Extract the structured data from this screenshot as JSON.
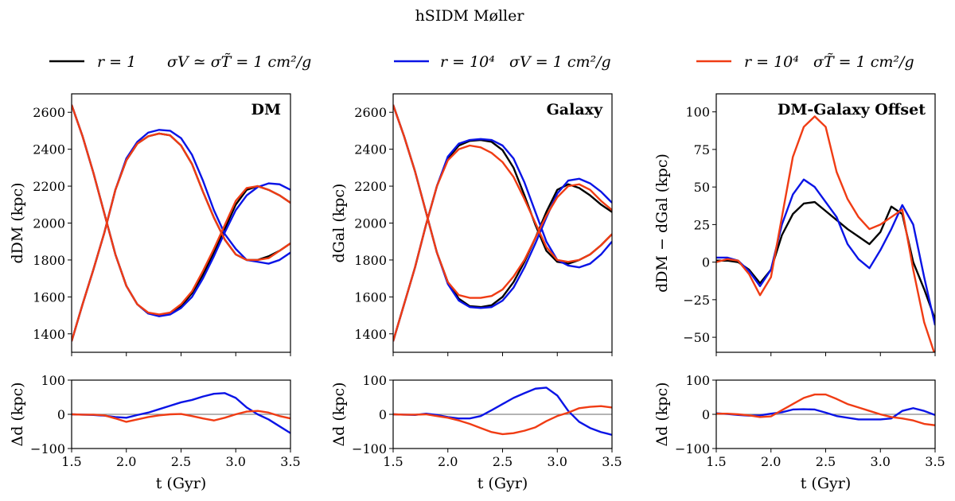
{
  "figure_title": "hSIDM     Møller",
  "legend": [
    {
      "name": "r = 1",
      "label_model": "r = 1",
      "label_cross": "σV ≃ σT̃ = 1 cm²/g",
      "color": "#000000"
    },
    {
      "name": "r = 10⁴, σV",
      "label_model": "r = 10⁴",
      "label_cross": "σV = 1 cm²/g",
      "color": "#0a14e6"
    },
    {
      "name": "r = 10⁴, σT",
      "label_model": "r = 10⁴",
      "label_cross": "σT̃ = 1 cm²/g",
      "color": "#f03c14"
    }
  ],
  "chart_data": [
    {
      "type": "line",
      "title": "DM",
      "xlabel": "t (Gyr)",
      "ylabel": "d_DM (kpc)",
      "ylabel_text": "dDM (kpc)",
      "xlim": [
        1.5,
        3.5
      ],
      "ylim": [
        1300,
        2700
      ],
      "xticks": [
        "1.5",
        "2.0",
        "2.5",
        "3.0",
        "3.5"
      ],
      "yticks": [
        "1400",
        "1600",
        "1800",
        "2000",
        "2200",
        "2400",
        "2600"
      ],
      "x": [
        1.5,
        1.6,
        1.7,
        1.8,
        1.9,
        2.0,
        2.1,
        2.2,
        2.3,
        2.4,
        2.5,
        2.6,
        2.7,
        2.8,
        2.9,
        3.0,
        3.1,
        3.2,
        3.3,
        3.4,
        3.5
      ],
      "series": [
        {
          "name": "r=1 upper",
          "color": "#000000",
          "values": [
            1360,
            1560,
            1750,
            1950,
            2180,
            2340,
            2430,
            2470,
            2485,
            2475,
            2420,
            2320,
            2170,
            2030,
            1910,
            1830,
            1800,
            1800,
            1820,
            1850,
            1890
          ]
        },
        {
          "name": "r=1 lower",
          "color": "#000000",
          "values": [
            2640,
            2470,
            2270,
            2050,
            1830,
            1660,
            1560,
            1510,
            1500,
            1510,
            1550,
            1620,
            1720,
            1840,
            1970,
            2100,
            2180,
            2200,
            2180,
            2150,
            2110
          ]
        },
        {
          "name": "σV upper",
          "color": "#0a14e6",
          "values": [
            1360,
            1560,
            1750,
            1950,
            2180,
            2350,
            2440,
            2490,
            2505,
            2500,
            2460,
            2370,
            2230,
            2070,
            1940,
            1860,
            1800,
            1790,
            1780,
            1800,
            1840
          ]
        },
        {
          "name": "σV lower",
          "color": "#0a14e6",
          "values": [
            2640,
            2470,
            2270,
            2050,
            1830,
            1660,
            1560,
            1510,
            1495,
            1505,
            1540,
            1600,
            1700,
            1820,
            1950,
            2070,
            2150,
            2195,
            2215,
            2210,
            2180
          ]
        },
        {
          "name": "σT upper",
          "color": "#f03c14",
          "values": [
            1360,
            1560,
            1750,
            1950,
            2180,
            2340,
            2430,
            2470,
            2485,
            2475,
            2420,
            2320,
            2170,
            2030,
            1910,
            1830,
            1800,
            1800,
            1810,
            1850,
            1890
          ]
        },
        {
          "name": "σT lower",
          "color": "#f03c14",
          "values": [
            2640,
            2470,
            2270,
            2050,
            1830,
            1660,
            1560,
            1515,
            1505,
            1515,
            1560,
            1630,
            1740,
            1860,
            1990,
            2120,
            2190,
            2200,
            2180,
            2150,
            2110
          ]
        }
      ],
      "residual": {
        "ylabel": "Δd (kpc)",
        "ylim": [
          -100,
          100
        ],
        "yticks": [
          "100",
          "0",
          "−100"
        ],
        "series": [
          {
            "name": "σV residual",
            "color": "#0a14e6",
            "values": [
              0,
              -1,
              -2,
              -4,
              -8,
              -10,
              -2,
              5,
              15,
              25,
              35,
              42,
              52,
              60,
              62,
              48,
              20,
              0,
              -15,
              -35,
              -55
            ]
          },
          {
            "name": "σT residual",
            "color": "#f03c14",
            "values": [
              0,
              -1,
              -1,
              -3,
              -12,
              -22,
              -15,
              -8,
              -3,
              0,
              1,
              -5,
              -12,
              -18,
              -10,
              0,
              8,
              10,
              5,
              -5,
              -12
            ]
          }
        ]
      }
    },
    {
      "type": "line",
      "title": "Galaxy",
      "xlabel": "t (Gyr)",
      "ylabel": "d_Gal (kpc)",
      "ylabel_text": "dGal (kpc)",
      "xlim": [
        1.5,
        3.5
      ],
      "ylim": [
        1300,
        2700
      ],
      "xticks": [
        "1.5",
        "2.0",
        "2.5",
        "3.0",
        "3.5"
      ],
      "yticks": [
        "1400",
        "1600",
        "1800",
        "2000",
        "2200",
        "2400",
        "2600"
      ],
      "x": [
        1.5,
        1.6,
        1.7,
        1.8,
        1.9,
        2.0,
        2.1,
        2.2,
        2.3,
        2.4,
        2.5,
        2.6,
        2.7,
        2.8,
        2.9,
        3.0,
        3.1,
        3.2,
        3.3,
        3.4,
        3.5
      ],
      "series": [
        {
          "name": "r=1 upper",
          "color": "#000000",
          "values": [
            1360,
            1560,
            1760,
            1990,
            2200,
            2350,
            2420,
            2445,
            2450,
            2440,
            2395,
            2300,
            2150,
            1990,
            1850,
            1790,
            1780,
            1800,
            1830,
            1880,
            1940
          ]
        },
        {
          "name": "r=1 lower",
          "color": "#000000",
          "values": [
            2640,
            2470,
            2280,
            2060,
            1840,
            1680,
            1590,
            1550,
            1545,
            1555,
            1600,
            1680,
            1790,
            1920,
            2060,
            2180,
            2210,
            2190,
            2150,
            2100,
            2060
          ]
        },
        {
          "name": "σV upper",
          "color": "#0a14e6",
          "values": [
            1360,
            1560,
            1760,
            1990,
            2200,
            2360,
            2430,
            2450,
            2455,
            2450,
            2420,
            2350,
            2220,
            2060,
            1900,
            1800,
            1770,
            1760,
            1780,
            1830,
            1900
          ]
        },
        {
          "name": "σV lower",
          "color": "#0a14e6",
          "values": [
            2640,
            2470,
            2280,
            2060,
            1840,
            1670,
            1580,
            1545,
            1540,
            1545,
            1580,
            1650,
            1760,
            1890,
            2030,
            2160,
            2230,
            2240,
            2215,
            2170,
            2110
          ]
        },
        {
          "name": "σT upper",
          "color": "#f03c14",
          "values": [
            1360,
            1560,
            1760,
            1990,
            2200,
            2340,
            2400,
            2420,
            2410,
            2380,
            2330,
            2250,
            2130,
            2000,
            1870,
            1800,
            1790,
            1800,
            1830,
            1880,
            1940
          ]
        },
        {
          "name": "σT lower",
          "color": "#f03c14",
          "values": [
            2640,
            2470,
            2280,
            2060,
            1840,
            1680,
            1610,
            1595,
            1595,
            1605,
            1640,
            1710,
            1800,
            1920,
            2040,
            2140,
            2200,
            2210,
            2180,
            2120,
            2070
          ]
        }
      ],
      "residual": {
        "ylabel": "Δd (kpc)",
        "ylim": [
          -100,
          100
        ],
        "yticks": [
          "100",
          "0",
          "−100"
        ],
        "series": [
          {
            "name": "σV residual",
            "color": "#0a14e6",
            "values": [
              0,
              -1,
              -2,
              2,
              -2,
              -8,
              -12,
              -12,
              -5,
              12,
              30,
              48,
              62,
              75,
              78,
              55,
              10,
              -22,
              -40,
              -52,
              -60
            ]
          },
          {
            "name": "σT residual",
            "color": "#f03c14",
            "values": [
              0,
              -1,
              -1,
              0,
              -5,
              -10,
              -18,
              -28,
              -40,
              -52,
              -58,
              -55,
              -48,
              -38,
              -20,
              -5,
              5,
              18,
              22,
              24,
              20
            ]
          }
        ]
      }
    },
    {
      "type": "line",
      "title": "DM-Galaxy Offset",
      "xlabel": "t (Gyr)",
      "ylabel": "d_DM − d_Gal (kpc)",
      "ylabel_text": "dDM − dGal (kpc)",
      "xlim": [
        1.5,
        3.5
      ],
      "ylim": [
        -60,
        112
      ],
      "xticks": [
        "1.5",
        "2.0",
        "2.5",
        "3.0",
        "3.5"
      ],
      "yticks": [
        "−50",
        "−25",
        "0",
        "25",
        "50",
        "75",
        "100"
      ],
      "x": [
        1.5,
        1.6,
        1.7,
        1.8,
        1.9,
        2.0,
        2.1,
        2.2,
        2.3,
        2.4,
        2.5,
        2.6,
        2.7,
        2.8,
        2.9,
        3.0,
        3.1,
        3.2,
        3.3,
        3.4,
        3.5
      ],
      "series": [
        {
          "name": "r=1",
          "color": "#000000",
          "values": [
            1,
            1,
            0,
            -5,
            -14,
            -5,
            18,
            32,
            39,
            40,
            34,
            28,
            22,
            17,
            12,
            20,
            37,
            32,
            0,
            -18,
            -38
          ]
        },
        {
          "name": "σV",
          "color": "#0a14e6",
          "values": [
            3,
            3,
            1,
            -6,
            -16,
            -5,
            25,
            45,
            55,
            50,
            40,
            30,
            12,
            2,
            -4,
            8,
            22,
            38,
            25,
            -10,
            -42
          ]
        },
        {
          "name": "σT",
          "color": "#f03c14",
          "values": [
            0,
            2,
            1,
            -8,
            -22,
            -10,
            30,
            70,
            90,
            97,
            90,
            60,
            42,
            30,
            22,
            25,
            30,
            35,
            -5,
            -40,
            -62
          ]
        }
      ],
      "residual": {
        "ylabel": "Δd (kpc)",
        "ylim": [
          -100,
          100
        ],
        "yticks": [
          "100",
          "0",
          "−100"
        ],
        "series": [
          {
            "name": "σV residual",
            "color": "#0a14e6",
            "values": [
              3,
              1,
              -2,
              -4,
              -3,
              2,
              6,
              14,
              15,
              14,
              5,
              -5,
              -10,
              -15,
              -15,
              -15,
              -12,
              10,
              18,
              10,
              -2
            ]
          },
          {
            "name": "σT residual",
            "color": "#f03c14",
            "values": [
              2,
              2,
              0,
              -3,
              -8,
              -6,
              12,
              30,
              48,
              58,
              58,
              45,
              30,
              20,
              10,
              0,
              -8,
              -12,
              -18,
              -28,
              -32
            ]
          }
        ]
      }
    }
  ]
}
